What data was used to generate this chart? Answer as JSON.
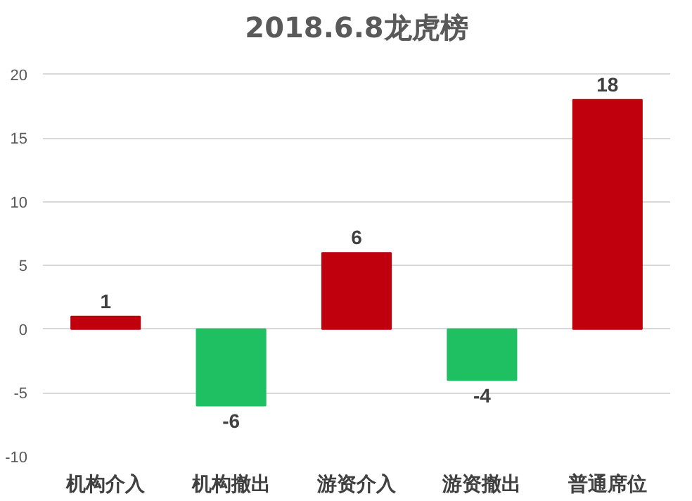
{
  "chart_data": {
    "type": "bar",
    "title": "2018.6.8龙虎榜",
    "categories": [
      "机构介入",
      "机构撤出",
      "游资介入",
      "游资撤出",
      "普通席位"
    ],
    "values": [
      1,
      -6,
      6,
      -4,
      18
    ],
    "colors": [
      "#c0000c",
      "#1fc062",
      "#c0000c",
      "#1fc062",
      "#c0000c"
    ],
    "ylim": [
      -10,
      20
    ],
    "yticks": [
      -10,
      -5,
      0,
      5,
      10,
      15,
      20
    ],
    "grid": "y",
    "data_labels": true
  }
}
